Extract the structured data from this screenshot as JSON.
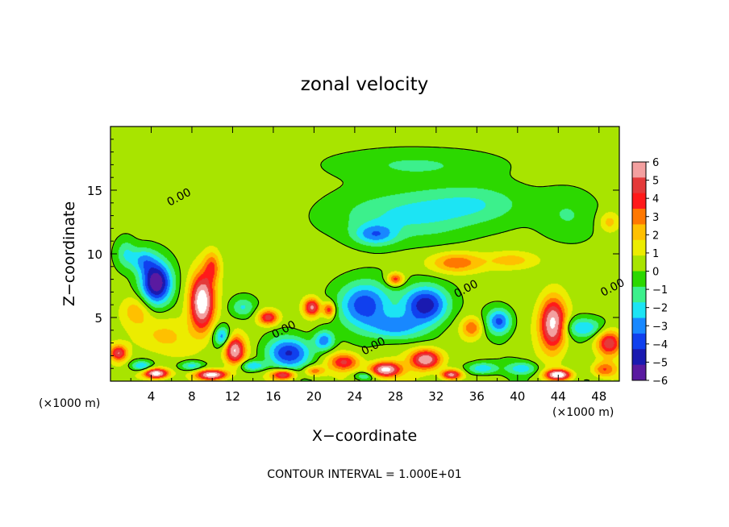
{
  "chart_data": {
    "type": "heatmap",
    "title": "zonal velocity",
    "xlabel": "X−coordinate",
    "ylabel": "Z−coordinate",
    "x_unit_label": "(×1000 m)",
    "footer": "CONTOUR INTERVAL = 1.000E+01",
    "xlim": [
      0,
      50
    ],
    "ylim": [
      0,
      20
    ],
    "x_ticks": [
      "4",
      "8",
      "12",
      "16",
      "20",
      "24",
      "28",
      "32",
      "36",
      "40",
      "44",
      "48"
    ],
    "y_ticks": [
      "5",
      "10",
      "15"
    ],
    "colorbar": {
      "range": [
        -6,
        6
      ],
      "ticks": [
        "6",
        "5",
        "4",
        "3",
        "2",
        "1",
        "0",
        "−1",
        "−2",
        "−3",
        "−4",
        "−5",
        "−6"
      ],
      "colors": [
        "#f3a0a0",
        "#e43a3a",
        "#ff1a1a",
        "#ff7800",
        "#ffc000",
        "#ecec00",
        "#a8e400",
        "#2cd800",
        "#3cf08c",
        "#1ce4f4",
        "#1888ff",
        "#1040ee",
        "#1a1ab0",
        "#5a1aa0"
      ]
    },
    "contour_labels": [
      {
        "text": "0.00",
        "x": 6.9,
        "z": 14.2
      },
      {
        "text": "0.00",
        "x": 17.2,
        "z": 3.8
      },
      {
        "text": "0.00",
        "x": 26.0,
        "z": 2.5
      },
      {
        "text": "0.00",
        "x": 35.1,
        "z": 7.0
      },
      {
        "text": "0.00",
        "x": 49.5,
        "z": 7.1
      }
    ],
    "features": [
      {
        "x": 4.5,
        "z": 7.7,
        "sx": 1.5,
        "sz": 1.7,
        "v": -6.5
      },
      {
        "x": 3.2,
        "z": 9.5,
        "sx": 1.2,
        "sz": 1.0,
        "v": -2.5
      },
      {
        "x": 9.0,
        "z": 6.2,
        "sx": 1.2,
        "sz": 2.2,
        "v": 7.0
      },
      {
        "x": 10.0,
        "z": 9.0,
        "sx": 0.8,
        "sz": 1.2,
        "v": 2.8
      },
      {
        "x": 12.2,
        "z": 2.4,
        "sx": 1.0,
        "sz": 1.1,
        "v": 6.0
      },
      {
        "x": 11.0,
        "z": 3.5,
        "sx": 0.8,
        "sz": 0.8,
        "v": -3.5
      },
      {
        "x": 13.0,
        "z": 5.8,
        "sx": 1.2,
        "sz": 0.8,
        "v": -2.2
      },
      {
        "x": 15.5,
        "z": 5.0,
        "sx": 1.0,
        "sz": 0.6,
        "v": 4.5
      },
      {
        "x": 17.5,
        "z": 2.2,
        "sx": 2.2,
        "sz": 1.2,
        "v": -4.5
      },
      {
        "x": 19.8,
        "z": 5.8,
        "sx": 0.8,
        "sz": 0.7,
        "v": 5.0
      },
      {
        "x": 21.5,
        "z": 5.6,
        "sx": 0.6,
        "sz": 0.6,
        "v": 4.0
      },
      {
        "x": 21.0,
        "z": 3.2,
        "sx": 1.0,
        "sz": 0.8,
        "v": -3.5
      },
      {
        "x": 25.0,
        "z": 6.0,
        "sx": 2.5,
        "sz": 1.8,
        "v": -4.5
      },
      {
        "x": 31.0,
        "z": 6.0,
        "sx": 2.2,
        "sz": 1.5,
        "v": -5.3
      },
      {
        "x": 28.0,
        "z": 4.2,
        "sx": 2.5,
        "sz": 1.0,
        "v": -3.0
      },
      {
        "x": 28.0,
        "z": 8.0,
        "sx": 0.8,
        "sz": 0.5,
        "v": 3.8
      },
      {
        "x": 34.0,
        "z": 9.3,
        "sx": 2.5,
        "sz": 0.8,
        "v": 3.0
      },
      {
        "x": 38.2,
        "z": 4.7,
        "sx": 1.2,
        "sz": 1.0,
        "v": -4.0
      },
      {
        "x": 35.5,
        "z": 4.2,
        "sx": 1.0,
        "sz": 0.8,
        "v": 3.0
      },
      {
        "x": 39.5,
        "z": 9.5,
        "sx": 2.5,
        "sz": 0.7,
        "v": 1.8
      },
      {
        "x": 43.5,
        "z": 4.5,
        "sx": 1.3,
        "sz": 2.0,
        "v": 6.5
      },
      {
        "x": 46.5,
        "z": 4.2,
        "sx": 2.0,
        "sz": 0.8,
        "v": -3.0
      },
      {
        "x": 49.0,
        "z": 3.0,
        "sx": 1.2,
        "sz": 1.0,
        "v": 4.5
      },
      {
        "x": 29.0,
        "z": 13.0,
        "sx": 7.0,
        "sz": 2.0,
        "v": -2.2
      },
      {
        "x": 26.0,
        "z": 11.5,
        "sx": 2.0,
        "sz": 0.8,
        "v": -2.8
      },
      {
        "x": 36.0,
        "z": 14.0,
        "sx": 5.0,
        "sz": 1.5,
        "v": -1.6
      },
      {
        "x": 30.0,
        "z": 17.0,
        "sx": 8.0,
        "sz": 1.2,
        "v": -1.3
      },
      {
        "x": 45.0,
        "z": 13.0,
        "sx": 3.0,
        "sz": 2.0,
        "v": -1.2
      },
      {
        "x": 1.5,
        "z": 10.0,
        "sx": 1.0,
        "sz": 1.2,
        "v": -2.0
      },
      {
        "x": 49.0,
        "z": 12.5,
        "sx": 1.0,
        "sz": 0.8,
        "v": 1.8
      },
      {
        "x": 5.0,
        "z": 3.5,
        "sx": 3.0,
        "sz": 1.5,
        "v": 1.5
      },
      {
        "x": 2.5,
        "z": 5.5,
        "sx": 1.5,
        "sz": 1.2,
        "v": 2.0
      },
      {
        "x": 0.8,
        "z": 2.2,
        "sx": 0.8,
        "sz": 0.6,
        "v": 4.5
      },
      {
        "x": 3.0,
        "z": 1.2,
        "sx": 1.0,
        "sz": 0.4,
        "v": -3.0
      },
      {
        "x": 8.0,
        "z": 1.2,
        "sx": 1.2,
        "sz": 0.4,
        "v": -2.8
      },
      {
        "x": 14.0,
        "z": 1.2,
        "sx": 1.2,
        "sz": 0.4,
        "v": -3.0
      },
      {
        "x": 4.5,
        "z": 0.6,
        "sx": 1.2,
        "sz": 0.4,
        "v": 7.0
      },
      {
        "x": 10.0,
        "z": 0.5,
        "sx": 1.5,
        "sz": 0.4,
        "v": 6.5
      },
      {
        "x": 17.0,
        "z": 0.5,
        "sx": 1.2,
        "sz": 0.4,
        "v": 5.0
      },
      {
        "x": 23.0,
        "z": 1.5,
        "sx": 1.5,
        "sz": 0.7,
        "v": 4.0
      },
      {
        "x": 27.0,
        "z": 0.9,
        "sx": 1.5,
        "sz": 0.6,
        "v": 6.5
      },
      {
        "x": 31.0,
        "z": 1.7,
        "sx": 1.5,
        "sz": 0.8,
        "v": 6.0
      },
      {
        "x": 33.5,
        "z": 0.5,
        "sx": 1.0,
        "sz": 0.4,
        "v": 5.5
      },
      {
        "x": 36.5,
        "z": 1.0,
        "sx": 1.5,
        "sz": 0.5,
        "v": -3.0
      },
      {
        "x": 40.5,
        "z": 1.0,
        "sx": 1.5,
        "sz": 0.5,
        "v": -2.5
      },
      {
        "x": 44.0,
        "z": 0.5,
        "sx": 1.2,
        "sz": 0.4,
        "v": 7.0
      },
      {
        "x": 48.5,
        "z": 0.9,
        "sx": 1.2,
        "sz": 0.6,
        "v": 3.0
      },
      {
        "x": 20.0,
        "z": 0.8,
        "sx": 1.0,
        "sz": 0.4,
        "v": 3.0
      },
      {
        "x": 25.0,
        "z": 0.4,
        "sx": 1.0,
        "sz": 0.3,
        "v": -2.0
      }
    ]
  }
}
